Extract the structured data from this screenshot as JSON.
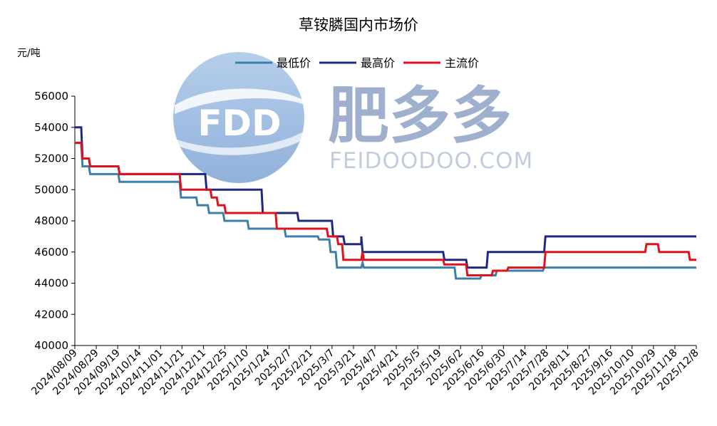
{
  "title": "草铵膦国内市场价",
  "unit_label": "元/吨",
  "watermark": {
    "logo_text": "FDD",
    "brand": "肥多多",
    "site": "FEIDOODOO.COM"
  },
  "colors": {
    "最低价": "#3d7fa8",
    "最高价": "#1f2a7e",
    "主流价": "#e1121b",
    "axis": "#000000"
  },
  "chart_data": {
    "type": "line",
    "title": "草铵膦国内市场价",
    "ylabel": "元/吨",
    "xlabel": "",
    "ylim": [
      40000,
      56000
    ],
    "yticks": [
      40000,
      42000,
      44000,
      46000,
      48000,
      50000,
      52000,
      54000,
      56000
    ],
    "xlim": [
      "2024/08/09",
      "2025/12/8"
    ],
    "grid": false,
    "legend_position": "top",
    "x_tick_labels": [
      "2024/08/09",
      "2024/08/29",
      "2024/09/19",
      "2024/10/14",
      "2024/11/01",
      "2024/11/21",
      "2024/12/11",
      "2024/12/25",
      "2025/1/10",
      "2025/1/24",
      "2025/2/7",
      "2025/2/21",
      "2025/3/7",
      "2025/3/21",
      "2025/4/7",
      "2025/4/21",
      "2025/5/5",
      "2025/5/19",
      "2025/6/2",
      "2025/6/16",
      "2025/6/30",
      "2025/7/14",
      "2025/7/28",
      "2025/8/11",
      "2025/8/27",
      "2025/9/16",
      "2025/10/10",
      "2025/10/29",
      "2025/11/18",
      "2025/12/8"
    ],
    "series": [
      {
        "name": "最低价",
        "points": [
          [
            "2024/08/09",
            53000
          ],
          [
            "2024/08/14",
            53000
          ],
          [
            "2024/08/15",
            51500
          ],
          [
            "2024/08/20",
            51500
          ],
          [
            "2024/08/21",
            51000
          ],
          [
            "2024/09/12",
            51000
          ],
          [
            "2024/09/13",
            50500
          ],
          [
            "2024/10/30",
            50500
          ],
          [
            "2024/10/31",
            49500
          ],
          [
            "2024/11/12",
            49500
          ],
          [
            "2024/11/13",
            49000
          ],
          [
            "2024/11/21",
            49000
          ],
          [
            "2024/11/22",
            48500
          ],
          [
            "2024/12/03",
            48500
          ],
          [
            "2024/12/04",
            48000
          ],
          [
            "2024/12/22",
            48000
          ],
          [
            "2024/12/23",
            47500
          ],
          [
            "2025/1/20",
            47500
          ],
          [
            "2025/1/21",
            47000
          ],
          [
            "2025/2/15",
            47000
          ],
          [
            "2025/2/16",
            46800
          ],
          [
            "2025/2/24",
            46800
          ],
          [
            "2025/2/25",
            46000
          ],
          [
            "2025/3/01",
            46000
          ],
          [
            "2025/3/02",
            45000
          ],
          [
            "2025/3/21",
            45000
          ],
          [
            "2025/3/22",
            45300
          ],
          [
            "2025/3/23",
            45000
          ],
          [
            "2025/6/02",
            45000
          ],
          [
            "2025/6/03",
            44300
          ],
          [
            "2025/6/22",
            44300
          ],
          [
            "2025/6/23",
            44500
          ],
          [
            "2025/7/04",
            44500
          ],
          [
            "2025/7/05",
            44800
          ],
          [
            "2025/8/10",
            44800
          ],
          [
            "2025/8/11",
            45000
          ],
          [
            "2025/12/8",
            45000
          ]
        ]
      },
      {
        "name": "最高价",
        "points": [
          [
            "2024/08/09",
            54000
          ],
          [
            "2024/08/14",
            54000
          ],
          [
            "2024/08/15",
            52000
          ],
          [
            "2024/08/20",
            52000
          ],
          [
            "2024/08/21",
            51500
          ],
          [
            "2024/09/12",
            51500
          ],
          [
            "2024/09/13",
            51000
          ],
          [
            "2024/11/19",
            51000
          ],
          [
            "2024/11/20",
            50000
          ],
          [
            "2025/1/02",
            50000
          ],
          [
            "2025/1/03",
            48500
          ],
          [
            "2025/1/30",
            48500
          ],
          [
            "2025/1/31",
            48000
          ],
          [
            "2025/2/26",
            48000
          ],
          [
            "2025/2/27",
            47000
          ],
          [
            "2025/3/07",
            47000
          ],
          [
            "2025/3/08",
            46500
          ],
          [
            "2025/3/21",
            46500
          ],
          [
            "2025/3/21",
            47000
          ],
          [
            "2025/3/22",
            46000
          ],
          [
            "2025/5/24",
            46000
          ],
          [
            "2025/5/25",
            45500
          ],
          [
            "2025/6/11",
            45500
          ],
          [
            "2025/6/12",
            45000
          ],
          [
            "2025/6/27",
            45000
          ],
          [
            "2025/6/28",
            46000
          ],
          [
            "2025/8/11",
            46000
          ],
          [
            "2025/8/12",
            47000
          ],
          [
            "2025/12/8",
            47000
          ]
        ]
      },
      {
        "name": "主流价",
        "points": [
          [
            "2024/08/09",
            53000
          ],
          [
            "2024/08/14",
            53000
          ],
          [
            "2024/08/15",
            52000
          ],
          [
            "2024/08/20",
            52000
          ],
          [
            "2024/08/21",
            51500
          ],
          [
            "2024/09/12",
            51500
          ],
          [
            "2024/09/13",
            51000
          ],
          [
            "2024/10/30",
            51000
          ],
          [
            "2024/10/31",
            50000
          ],
          [
            "2024/11/23",
            50000
          ],
          [
            "2024/11/24",
            49500
          ],
          [
            "2024/11/28",
            49500
          ],
          [
            "2024/11/29",
            49000
          ],
          [
            "2024/12/04",
            49000
          ],
          [
            "2024/12/05",
            48500
          ],
          [
            "2025/1/13",
            48500
          ],
          [
            "2025/1/14",
            47500
          ],
          [
            "2025/2/22",
            47500
          ],
          [
            "2025/2/23",
            47000
          ],
          [
            "2025/3/02",
            47000
          ],
          [
            "2025/3/03",
            46500
          ],
          [
            "2025/3/06",
            46500
          ],
          [
            "2025/3/07",
            45500
          ],
          [
            "2025/3/21",
            45500
          ],
          [
            "2025/3/22",
            46000
          ],
          [
            "2025/3/23",
            45500
          ],
          [
            "2025/5/24",
            45500
          ],
          [
            "2025/5/25",
            45200
          ],
          [
            "2025/6/11",
            45200
          ],
          [
            "2025/6/12",
            44500
          ],
          [
            "2025/7/01",
            44500
          ],
          [
            "2025/7/02",
            44800
          ],
          [
            "2025/7/13",
            44800
          ],
          [
            "2025/7/14",
            45000
          ],
          [
            "2025/8/11",
            45000
          ],
          [
            "2025/8/12",
            46000
          ],
          [
            "2025/10/29",
            46000
          ],
          [
            "2025/10/30",
            46500
          ],
          [
            "2025/11/08",
            46500
          ],
          [
            "2025/11/09",
            46000
          ],
          [
            "2025/12/02",
            46000
          ],
          [
            "2025/12/03",
            45500
          ],
          [
            "2025/12/8",
            45500
          ]
        ]
      }
    ]
  }
}
